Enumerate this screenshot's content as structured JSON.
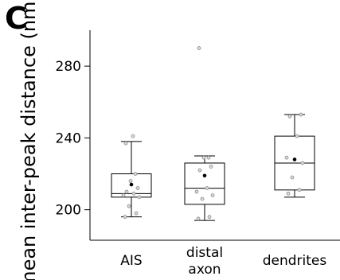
{
  "panel_letter": "C",
  "chart_data": {
    "type": "box",
    "ylabel": "mean inter-peak distance (nm)",
    "xlabel": "",
    "ylim": [
      183,
      300
    ],
    "yticks": [
      200,
      240,
      280
    ],
    "categories": [
      "AIS",
      "distal axon",
      "dendrites"
    ],
    "category_lines": [
      [
        "AIS"
      ],
      [
        "distal",
        "axon"
      ],
      [
        "dendrites"
      ]
    ],
    "grid": false,
    "groups": [
      {
        "name": "AIS",
        "whisker_low": 196,
        "q1": 207,
        "median": 209,
        "q3": 220,
        "whisker_high": 238,
        "mean": 214,
        "points": [
          196,
          198,
          202,
          207,
          208,
          209,
          210,
          212,
          216,
          220,
          237,
          241
        ]
      },
      {
        "name": "distal axon",
        "whisker_low": 194,
        "q1": 203,
        "median": 212,
        "q3": 226,
        "whisker_high": 230,
        "mean": 219,
        "points": [
          195,
          196,
          206,
          208,
          210,
          212,
          222,
          224,
          229,
          229,
          290
        ]
      },
      {
        "name": "dendrites",
        "whisker_low": 207,
        "q1": 211,
        "median": 226,
        "q3": 241,
        "whisker_high": 253,
        "mean": 228,
        "points": [
          209,
          211,
          218,
          226,
          229,
          241,
          252,
          253
        ]
      }
    ]
  }
}
